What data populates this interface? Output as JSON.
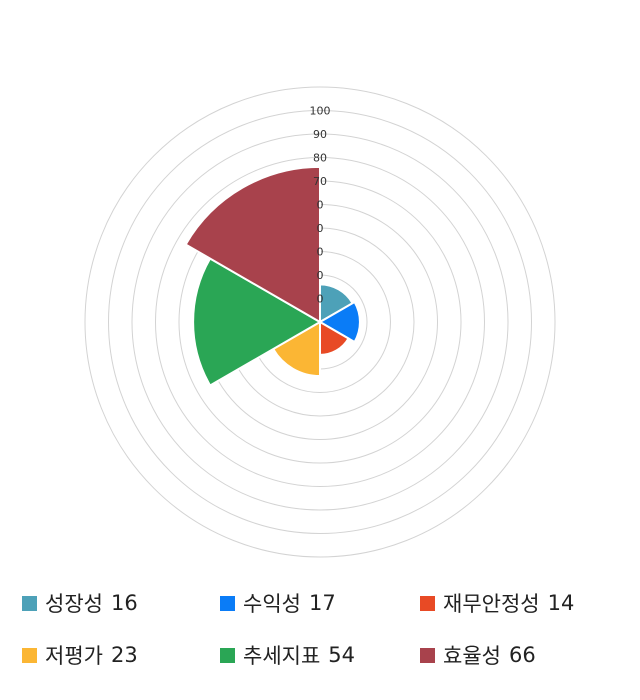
{
  "chart_data": {
    "type": "polar-area",
    "title": "",
    "rlim": [
      0,
      100
    ],
    "ticks": [
      "0",
      "0",
      "0",
      "0",
      "0",
      "70",
      "80",
      "90",
      "100"
    ],
    "grid": true,
    "legend_position": "bottom",
    "categories": [
      "성장성",
      "수익성",
      "재무안정성",
      "저평가",
      "추세지표",
      "효율성"
    ],
    "values": [
      16,
      17,
      14,
      23,
      54,
      66
    ],
    "colors": [
      "#4da1b8",
      "#0a7cf7",
      "#e84a25",
      "#fbb634",
      "#2aa655",
      "#a8424c"
    ]
  },
  "legend": [
    {
      "label": "성장성",
      "value": "16",
      "color": "#4da1b8"
    },
    {
      "label": "수익성",
      "value": "17",
      "color": "#0a7cf7"
    },
    {
      "label": "재무안정성",
      "value": "14",
      "color": "#e84a25"
    },
    {
      "label": "저평가",
      "value": "23",
      "color": "#fbb634"
    },
    {
      "label": "추세지표",
      "value": "54",
      "color": "#2aa655"
    },
    {
      "label": "효율성",
      "value": "66",
      "color": "#a8424c"
    }
  ]
}
